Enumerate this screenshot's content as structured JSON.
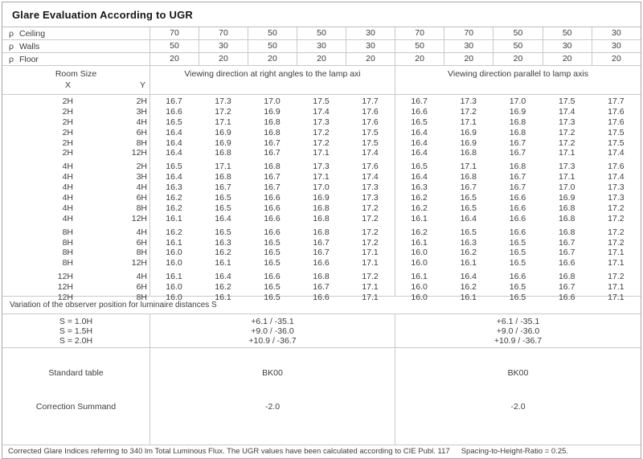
{
  "title": "Glare Evaluation According to UGR",
  "reflectances": {
    "symbol": "ρ",
    "rows": [
      {
        "label": "Ceiling",
        "values": [
          "70",
          "70",
          "50",
          "50",
          "30",
          "70",
          "70",
          "50",
          "50",
          "30"
        ]
      },
      {
        "label": "Walls",
        "values": [
          "50",
          "30",
          "50",
          "30",
          "30",
          "50",
          "30",
          "50",
          "30",
          "30"
        ]
      },
      {
        "label": "Floor",
        "values": [
          "20",
          "20",
          "20",
          "20",
          "20",
          "20",
          "20",
          "20",
          "20",
          "20"
        ]
      }
    ]
  },
  "header": {
    "room_size": "Room Size",
    "x": "X",
    "y": "Y",
    "left_title": "Viewing direction at right angles to the lamp axi",
    "right_title": "Viewing direction parallel to lamp axis"
  },
  "groups": [
    {
      "rows": [
        {
          "x": "2H",
          "y": "2H",
          "left": [
            "16.7",
            "17.3",
            "17.0",
            "17.5",
            "17.7"
          ],
          "right": [
            "16.7",
            "17.3",
            "17.0",
            "17.5",
            "17.7"
          ]
        },
        {
          "x": "2H",
          "y": "3H",
          "left": [
            "16.6",
            "17.2",
            "16.9",
            "17.4",
            "17.6"
          ],
          "right": [
            "16.6",
            "17.2",
            "16.9",
            "17.4",
            "17.6"
          ]
        },
        {
          "x": "2H",
          "y": "4H",
          "left": [
            "16.5",
            "17.1",
            "16.8",
            "17.3",
            "17.6"
          ],
          "right": [
            "16.5",
            "17.1",
            "16.8",
            "17.3",
            "17.6"
          ]
        },
        {
          "x": "2H",
          "y": "6H",
          "left": [
            "16.4",
            "16.9",
            "16.8",
            "17.2",
            "17.5"
          ],
          "right": [
            "16.4",
            "16.9",
            "16.8",
            "17.2",
            "17.5"
          ]
        },
        {
          "x": "2H",
          "y": "8H",
          "left": [
            "16.4",
            "16.9",
            "16.7",
            "17.2",
            "17.5"
          ],
          "right": [
            "16.4",
            "16.9",
            "16.7",
            "17.2",
            "17.5"
          ]
        },
        {
          "x": "2H",
          "y": "12H",
          "left": [
            "16.4",
            "16.8",
            "16.7",
            "17.1",
            "17.4"
          ],
          "right": [
            "16.4",
            "16.8",
            "16.7",
            "17.1",
            "17.4"
          ]
        }
      ]
    },
    {
      "rows": [
        {
          "x": "4H",
          "y": "2H",
          "left": [
            "16.5",
            "17.1",
            "16.8",
            "17.3",
            "17.6"
          ],
          "right": [
            "16.5",
            "17.1",
            "16.8",
            "17.3",
            "17.6"
          ]
        },
        {
          "x": "4H",
          "y": "3H",
          "left": [
            "16.4",
            "16.8",
            "16.7",
            "17.1",
            "17.4"
          ],
          "right": [
            "16.4",
            "16.8",
            "16.7",
            "17.1",
            "17.4"
          ]
        },
        {
          "x": "4H",
          "y": "4H",
          "left": [
            "16.3",
            "16.7",
            "16.7",
            "17.0",
            "17.3"
          ],
          "right": [
            "16.3",
            "16.7",
            "16.7",
            "17.0",
            "17.3"
          ]
        },
        {
          "x": "4H",
          "y": "6H",
          "left": [
            "16.2",
            "16.5",
            "16.6",
            "16.9",
            "17.3"
          ],
          "right": [
            "16.2",
            "16.5",
            "16.6",
            "16.9",
            "17.3"
          ]
        },
        {
          "x": "4H",
          "y": "8H",
          "left": [
            "16.2",
            "16.5",
            "16.6",
            "16.8",
            "17.2"
          ],
          "right": [
            "16.2",
            "16.5",
            "16.6",
            "16.8",
            "17.2"
          ]
        },
        {
          "x": "4H",
          "y": "12H",
          "left": [
            "16.1",
            "16.4",
            "16.6",
            "16.8",
            "17.2"
          ],
          "right": [
            "16.1",
            "16.4",
            "16.6",
            "16.8",
            "17.2"
          ]
        }
      ]
    },
    {
      "rows": [
        {
          "x": "8H",
          "y": "4H",
          "left": [
            "16.2",
            "16.5",
            "16.6",
            "16.8",
            "17.2"
          ],
          "right": [
            "16.2",
            "16.5",
            "16.6",
            "16.8",
            "17.2"
          ]
        },
        {
          "x": "8H",
          "y": "6H",
          "left": [
            "16.1",
            "16.3",
            "16.5",
            "16.7",
            "17.2"
          ],
          "right": [
            "16.1",
            "16.3",
            "16.5",
            "16.7",
            "17.2"
          ]
        },
        {
          "x": "8H",
          "y": "8H",
          "left": [
            "16.0",
            "16.2",
            "16.5",
            "16.7",
            "17.1"
          ],
          "right": [
            "16.0",
            "16.2",
            "16.5",
            "16.7",
            "17.1"
          ]
        },
        {
          "x": "8H",
          "y": "12H",
          "left": [
            "16.0",
            "16.1",
            "16.5",
            "16.6",
            "17.1"
          ],
          "right": [
            "16.0",
            "16.1",
            "16.5",
            "16.6",
            "17.1"
          ]
        }
      ]
    },
    {
      "rows": [
        {
          "x": "12H",
          "y": "4H",
          "left": [
            "16.1",
            "16.4",
            "16.6",
            "16.8",
            "17.2"
          ],
          "right": [
            "16.1",
            "16.4",
            "16.6",
            "16.8",
            "17.2"
          ]
        },
        {
          "x": "12H",
          "y": "6H",
          "left": [
            "16.0",
            "16.2",
            "16.5",
            "16.7",
            "17.1"
          ],
          "right": [
            "16.0",
            "16.2",
            "16.5",
            "16.7",
            "17.1"
          ]
        },
        {
          "x": "12H",
          "y": "8H",
          "left": [
            "16.0",
            "16.1",
            "16.5",
            "16.6",
            "17.1"
          ],
          "right": [
            "16.0",
            "16.1",
            "16.5",
            "16.6",
            "17.1"
          ]
        }
      ]
    }
  ],
  "variation": {
    "label": "Variation of the observer position for luminaire distances S",
    "rows": [
      {
        "s": "S = 1.0H",
        "left": "+6.1 / -35.1",
        "right": "+6.1 / -35.1"
      },
      {
        "s": "S = 1.5H",
        "left": "+9.0 / -36.0",
        "right": "+9.0 / -36.0"
      },
      {
        "s": "S = 2.0H",
        "left": "+10.9 / -36.7",
        "right": "+10.9 / -36.7"
      }
    ]
  },
  "standard": {
    "rows": [
      {
        "label": "Standard table",
        "left": "BK00",
        "right": "BK00"
      },
      {
        "label": "Correction Summand",
        "left": "-2.0",
        "right": "-2.0"
      }
    ]
  },
  "footer": {
    "note": "Corrected Glare Indices referring to 340 lm Total Luminous Flux. The UGR values have been calculated according to CIE Publ. 117",
    "ratio": "Spacing-to-Height-Ratio = 0.25."
  },
  "colors": {
    "grid_line": "#c9c9c9",
    "outer_border": "#a6a6a6",
    "text": "#3c3c3c"
  }
}
